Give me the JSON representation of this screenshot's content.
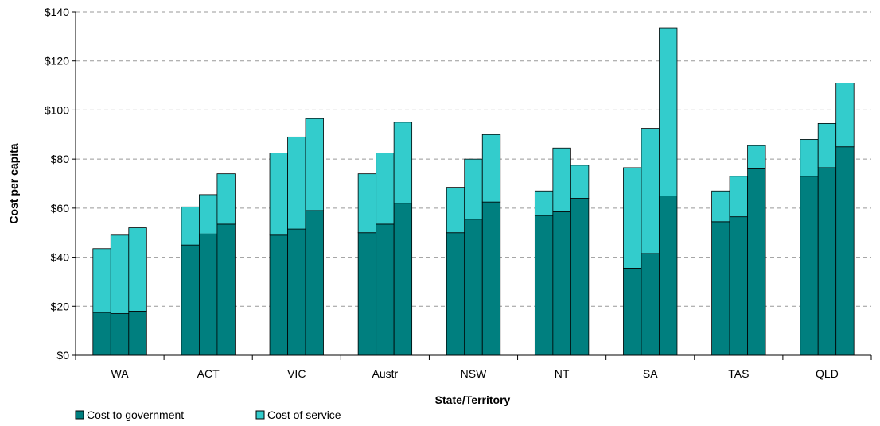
{
  "chart_data": {
    "type": "bar",
    "stacked": true,
    "title": "",
    "xlabel": "State/Territory",
    "ylabel": "Cost per capita",
    "ylim": [
      0,
      140
    ],
    "yticks": [
      0,
      20,
      40,
      60,
      80,
      100,
      120,
      140
    ],
    "ytick_labels": [
      "$0",
      "$20",
      "$40",
      "$60",
      "$80",
      "$100",
      "$120",
      "$140"
    ],
    "grid": "horizontal dashed",
    "legend_position": "bottom-left",
    "categories": [
      "WA",
      "ACT",
      "VIC",
      "Austr",
      "NSW",
      "NT",
      "SA",
      "TAS",
      "QLD"
    ],
    "bars_per_category": 3,
    "series": [
      {
        "name": "Cost to government",
        "color": "#007f7f",
        "values": [
          [
            17.5,
            17,
            18
          ],
          [
            45,
            49.5,
            53.5
          ],
          [
            49,
            51.5,
            59
          ],
          [
            50,
            53.5,
            62
          ],
          [
            50,
            55.5,
            62.5
          ],
          [
            57,
            58.5,
            64
          ],
          [
            35.5,
            41.5,
            65
          ],
          [
            54.5,
            56.5,
            76
          ],
          [
            73,
            76.5,
            85
          ]
        ]
      },
      {
        "name": "Cost of service",
        "color": "#33cccc",
        "values": [
          [
            26,
            32,
            34
          ],
          [
            15.5,
            16,
            20.5
          ],
          [
            33.5,
            37.5,
            37.5
          ],
          [
            24,
            29,
            33
          ],
          [
            18.5,
            24.5,
            27.5
          ],
          [
            10,
            26,
            13.5
          ],
          [
            41,
            51,
            68.5
          ],
          [
            12.5,
            16.5,
            9.5
          ],
          [
            15,
            18,
            26
          ]
        ]
      }
    ]
  }
}
